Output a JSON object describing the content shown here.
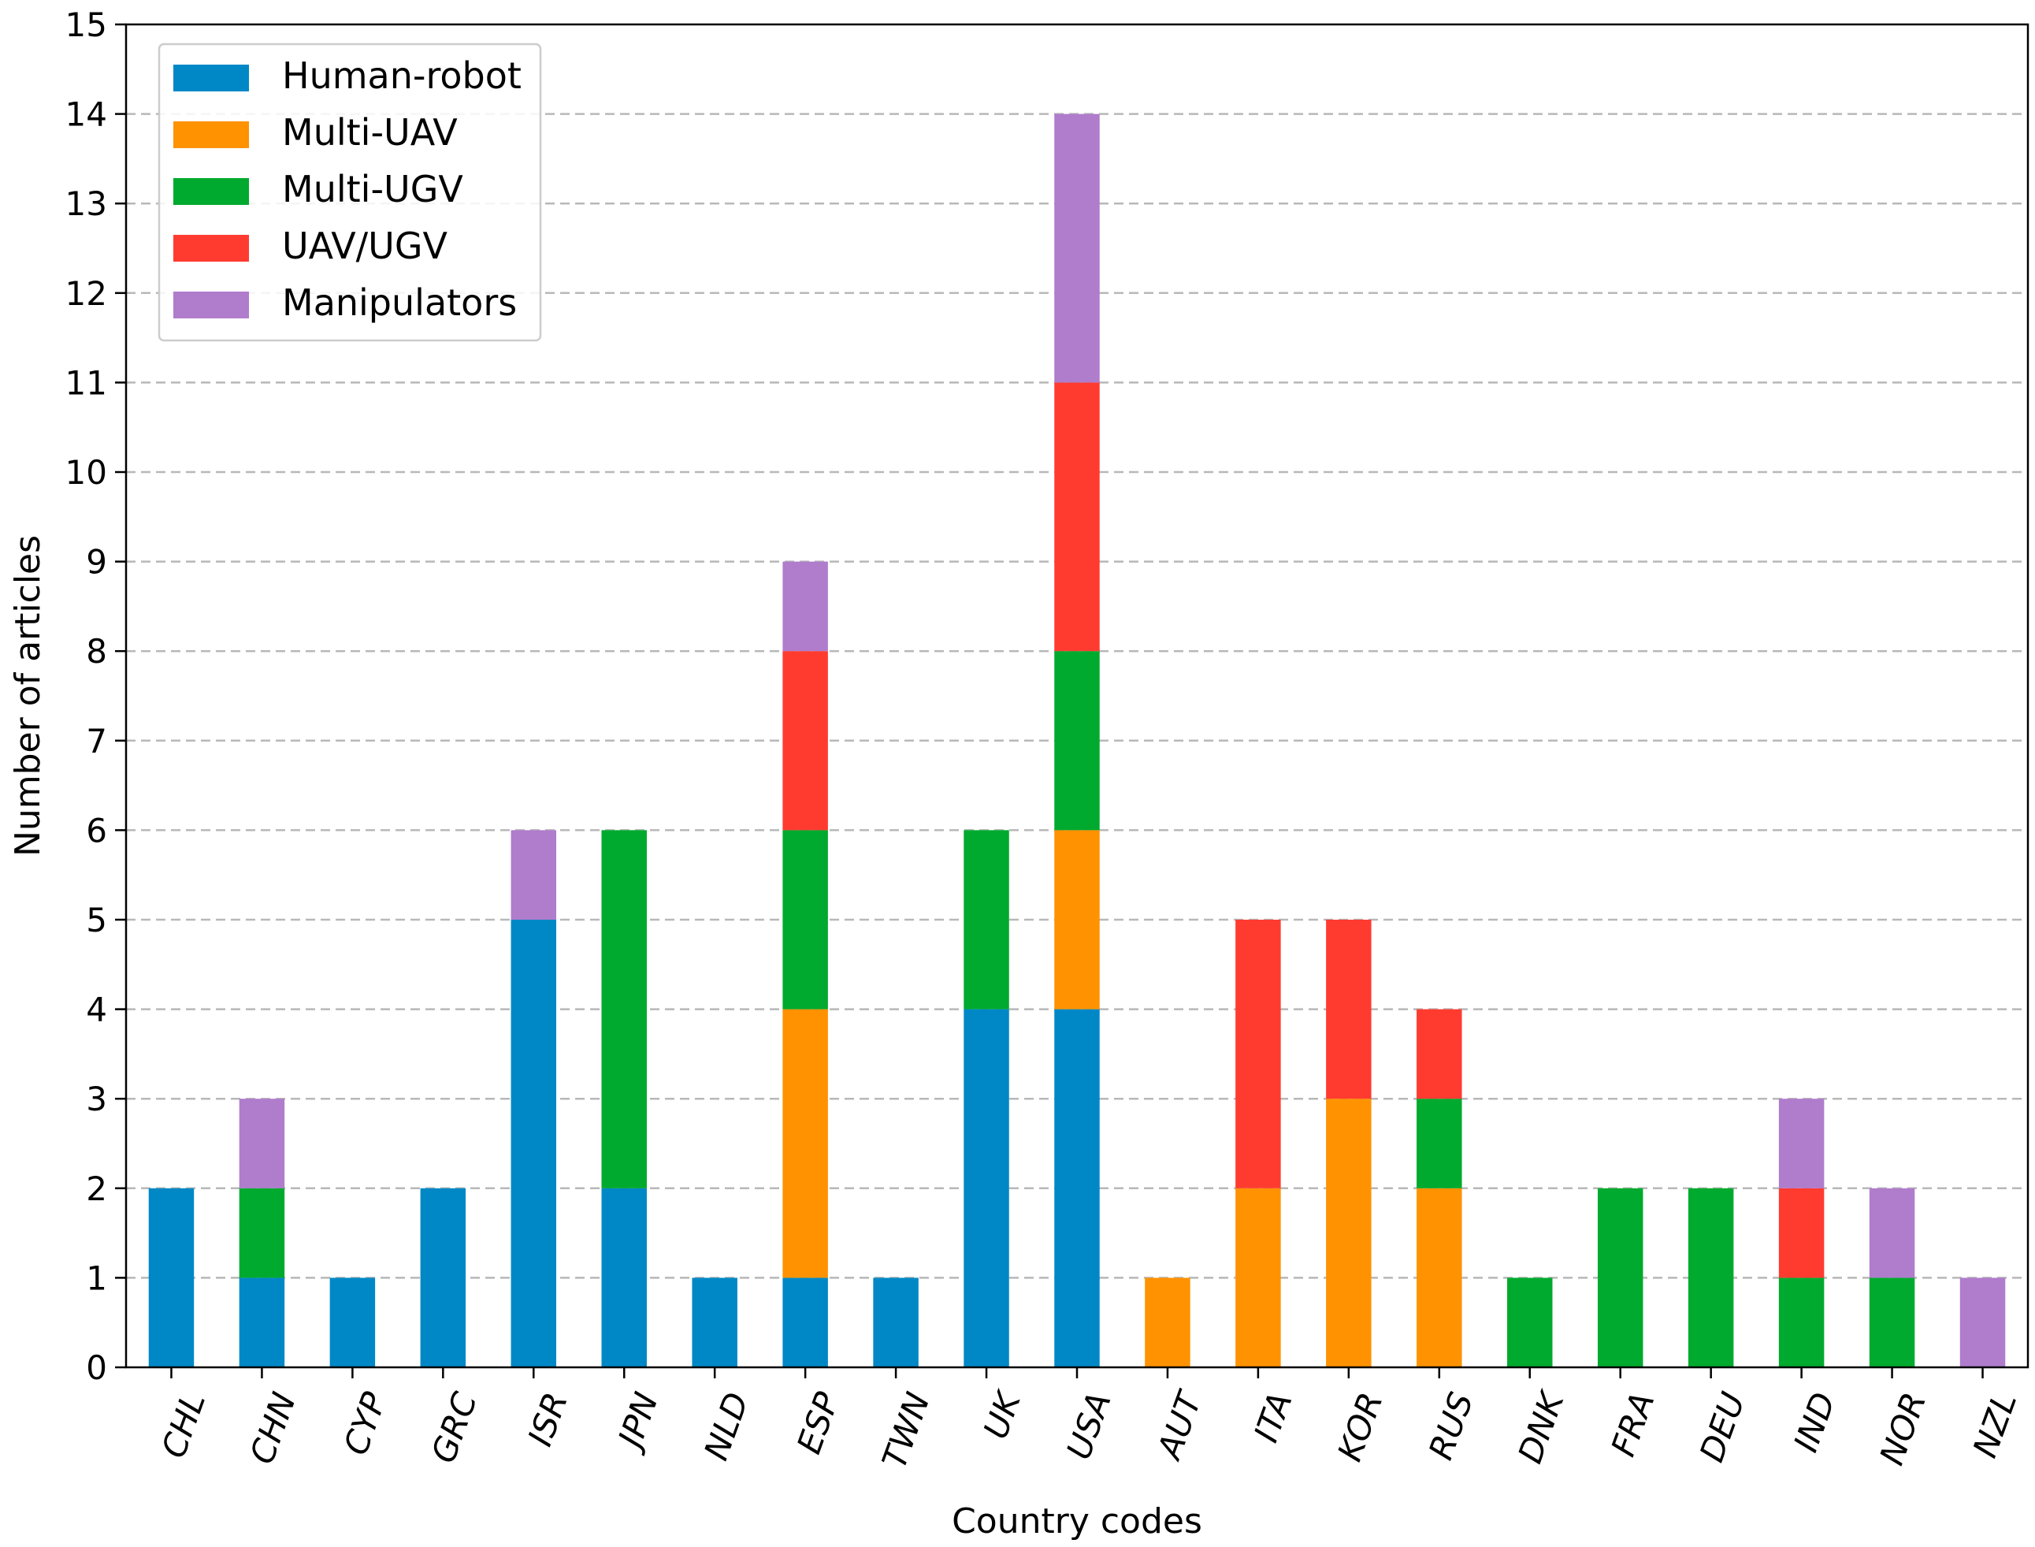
{
  "chart_data": {
    "type": "bar",
    "stacked": true,
    "title": "",
    "xlabel": "Country codes",
    "ylabel": "Number of articles",
    "ylim": [
      0,
      15
    ],
    "yticks": [
      0,
      1,
      2,
      3,
      4,
      5,
      6,
      7,
      8,
      9,
      10,
      11,
      12,
      13,
      14,
      15
    ],
    "grid": "horizontal dashed",
    "legend_position": "top-left",
    "categories": [
      "CHL",
      "CHN",
      "CYP",
      "GRC",
      "ISR",
      "JPN",
      "NLD",
      "ESP",
      "TWN",
      "UK",
      "USA",
      "AUT",
      "ITA",
      "KOR",
      "RUS",
      "DNK",
      "FRA",
      "DEU",
      "IND",
      "NOR",
      "NZL"
    ],
    "series": [
      {
        "name": "Human-robot",
        "color": "#0088c6",
        "values": [
          2,
          1,
          1,
          2,
          5,
          2,
          1,
          1,
          1,
          4,
          4,
          0,
          0,
          0,
          0,
          0,
          0,
          0,
          0,
          0,
          0
        ]
      },
      {
        "name": "Multi-UAV",
        "color": "#ff9200",
        "values": [
          0,
          0,
          0,
          0,
          0,
          0,
          0,
          3,
          0,
          0,
          2,
          1,
          2,
          3,
          2,
          0,
          0,
          0,
          0,
          0,
          0
        ]
      },
      {
        "name": "Multi-UGV",
        "color": "#00aa2e",
        "values": [
          0,
          1,
          0,
          0,
          0,
          4,
          0,
          2,
          0,
          2,
          2,
          0,
          0,
          0,
          1,
          1,
          2,
          2,
          1,
          1,
          0
        ]
      },
      {
        "name": "UAV/UGV",
        "color": "#ff3b30",
        "values": [
          0,
          0,
          0,
          0,
          0,
          0,
          0,
          2,
          0,
          0,
          3,
          0,
          3,
          2,
          1,
          0,
          0,
          0,
          1,
          0,
          0
        ]
      },
      {
        "name": "Manipulators",
        "color": "#b07ccc",
        "values": [
          0,
          1,
          0,
          0,
          1,
          0,
          0,
          1,
          0,
          0,
          3,
          0,
          0,
          0,
          0,
          0,
          0,
          0,
          1,
          1,
          1
        ]
      }
    ]
  }
}
